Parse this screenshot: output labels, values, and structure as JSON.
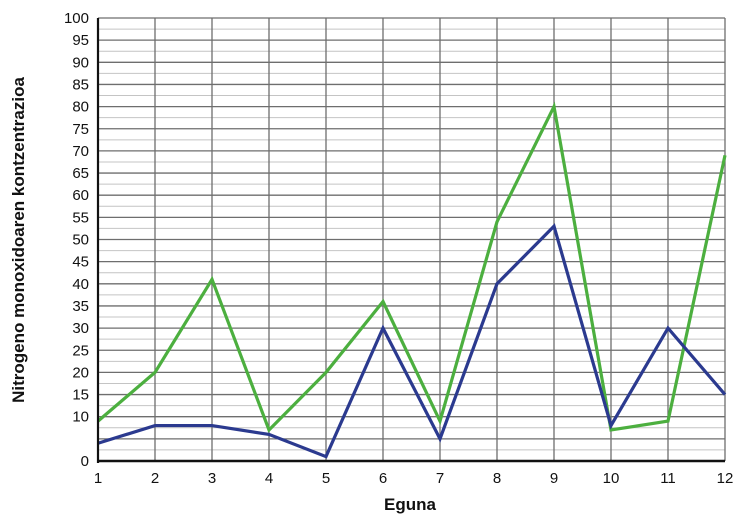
{
  "chart_data": {
    "type": "line",
    "title": "",
    "xlabel": "Eguna",
    "ylabel": "Nitrogeno monoxidoaren kontzentrazioa",
    "x": [
      1,
      2,
      3,
      4,
      5,
      6,
      7,
      8,
      9,
      10,
      11,
      12
    ],
    "x_tick_labels": [
      "1",
      "2",
      "3",
      "4",
      "5",
      "6",
      "7",
      "8",
      "9",
      "10",
      "11",
      "12"
    ],
    "y_tick_labels": [
      "0",
      "10",
      "15",
      "20",
      "25",
      "30",
      "35",
      "40",
      "45",
      "50",
      "55",
      "60",
      "65",
      "70",
      "75",
      "80",
      "85",
      "90",
      "95",
      "100"
    ],
    "xlim": [
      1,
      12
    ],
    "ylim": [
      0,
      100
    ],
    "grid": true,
    "legend": "none",
    "series": [
      {
        "color": "#4caf3f",
        "values": [
          9,
          20,
          41,
          7,
          20,
          36,
          9,
          54,
          80,
          7,
          9,
          69
        ]
      },
      {
        "color": "#2b3a8f",
        "values": [
          4,
          8,
          8,
          6,
          1,
          30,
          5,
          40,
          53,
          8,
          30,
          15
        ]
      }
    ]
  }
}
